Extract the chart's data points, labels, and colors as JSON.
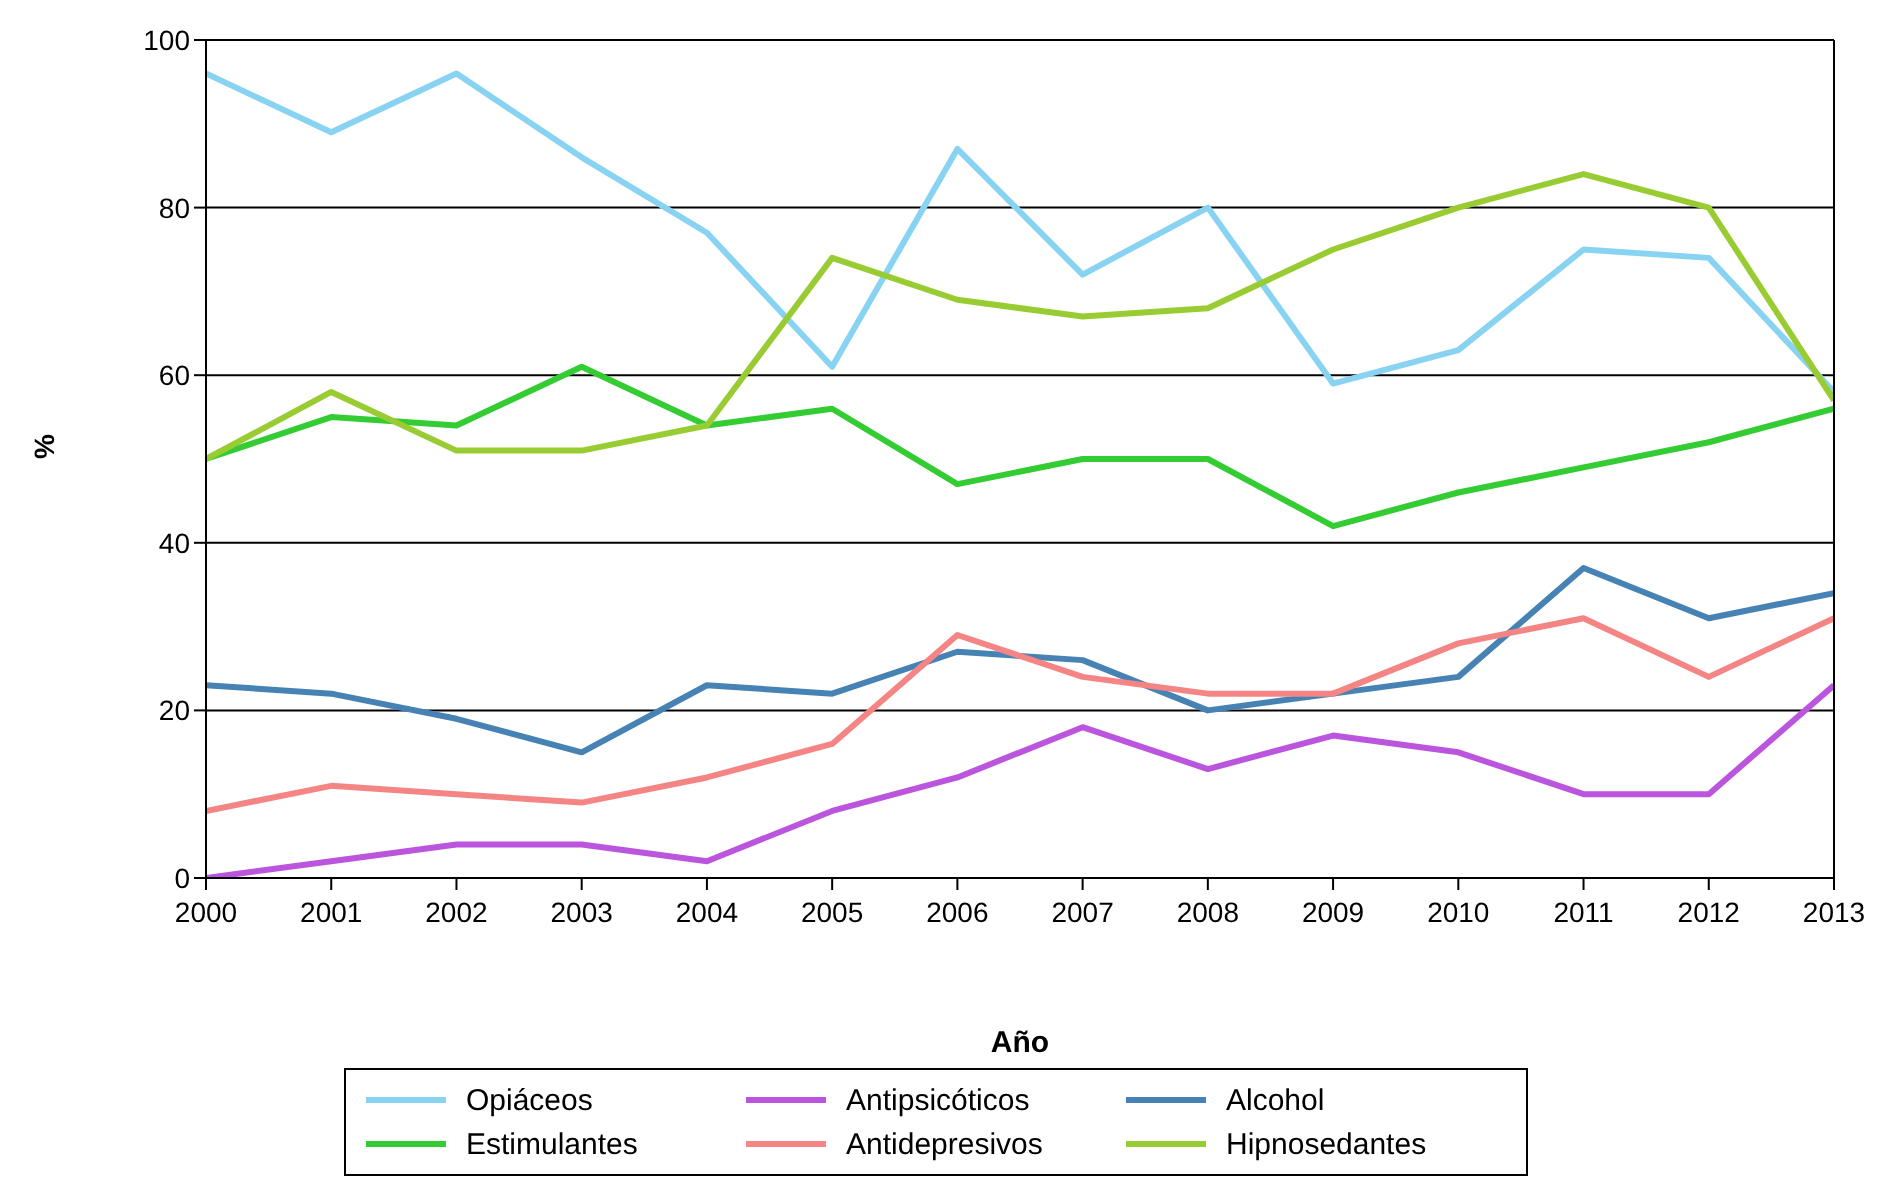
{
  "chart_data": {
    "type": "line",
    "xlabel": "Año",
    "ylabel": "%",
    "x": [
      2000,
      2001,
      2002,
      2003,
      2004,
      2005,
      2006,
      2007,
      2008,
      2009,
      2010,
      2011,
      2012,
      2013
    ],
    "xlim": [
      2000,
      2013
    ],
    "xticks": [
      2000,
      2001,
      2002,
      2003,
      2004,
      2005,
      2006,
      2007,
      2008,
      2009,
      2010,
      2011,
      2012,
      2013
    ],
    "ylim": [
      0,
      100
    ],
    "yticks": [
      0,
      20,
      40,
      60,
      80,
      100
    ],
    "grid": "y",
    "legend": "bottom",
    "marker": "none",
    "line_style": "solid",
    "series": [
      {
        "name": "Opiáceos",
        "color": "#88d3f2",
        "values": [
          96,
          89,
          96,
          86,
          77,
          61,
          87,
          72,
          80,
          59,
          63,
          75,
          74,
          58
        ]
      },
      {
        "name": "Antipsicóticos",
        "color": "#bb55dd",
        "values": [
          0,
          2,
          4,
          4,
          2,
          8,
          12,
          18,
          13,
          17,
          15,
          10,
          10,
          23
        ]
      },
      {
        "name": "Alcohol",
        "color": "#4682b4",
        "values": [
          23,
          22,
          19,
          15,
          23,
          22,
          27,
          26,
          20,
          22,
          24,
          37,
          31,
          34
        ]
      },
      {
        "name": "Estimulantes",
        "color": "#33cc33",
        "values": [
          50,
          55,
          54,
          61,
          54,
          56,
          47,
          50,
          50,
          42,
          46,
          49,
          52,
          56
        ]
      },
      {
        "name": "Antidepresivos",
        "color": "#f58585",
        "values": [
          8,
          11,
          10,
          9,
          12,
          16,
          29,
          24,
          22,
          22,
          28,
          31,
          24,
          31
        ]
      },
      {
        "name": "Hipnosedantes",
        "color": "#99cc33",
        "values": [
          50,
          58,
          51,
          51,
          54,
          74,
          69,
          67,
          68,
          75,
          80,
          84,
          80,
          57
        ]
      }
    ]
  }
}
